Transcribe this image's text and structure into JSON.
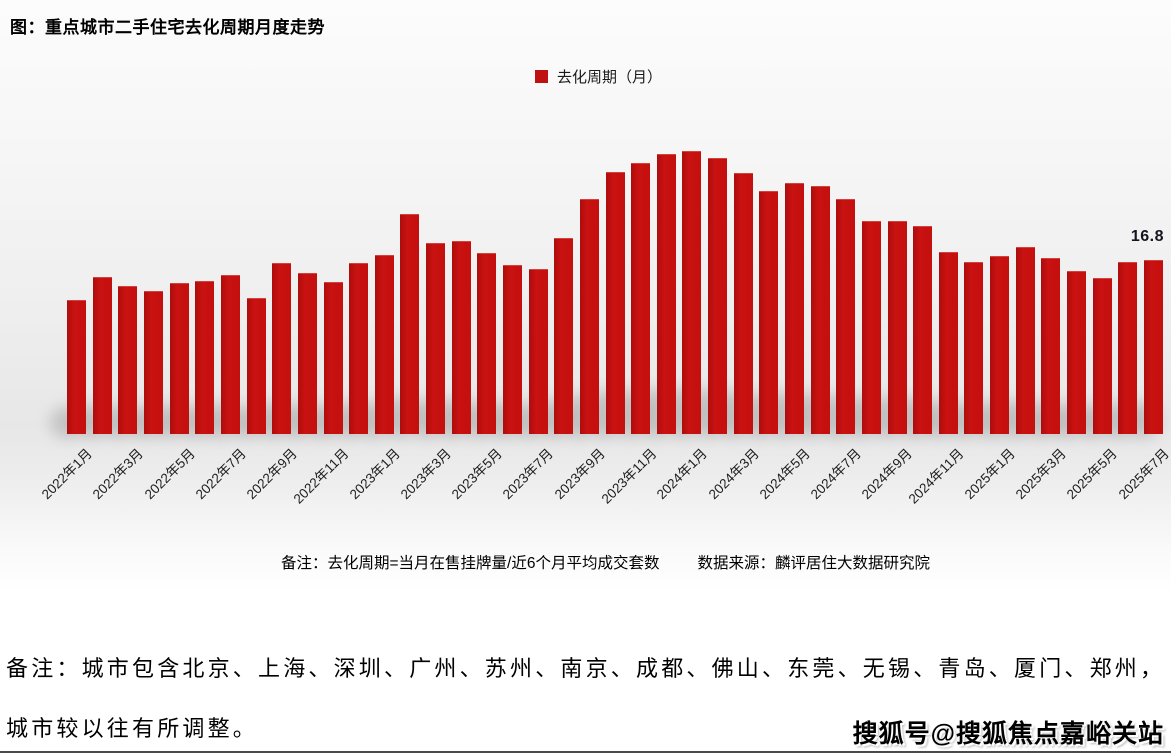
{
  "page": {
    "title": "图：重点城市二手住宅去化周期月度走势",
    "legend_label": "去化周期（月）",
    "last_value_label": "16.8",
    "note_formula": "备注：去化周期=当月在售挂牌量/近6个月平均成交套数",
    "note_source": "数据来源：麟评居住大数据研究院",
    "footer_line1": "备注：城市包含北京、上海、深圳、广州、苏州、南京、成都、佛山、东莞、无锡、青岛、厦门、郑州，",
    "footer_line2": "城市较以往有所调整。",
    "watermark": "搜狐号@搜狐焦点嘉峪关站"
  },
  "chart_data": {
    "type": "bar",
    "title": "图：重点城市二手住宅去化周期月度走势",
    "unit": "月",
    "bar_color": "#c5100f",
    "grid": false,
    "legend_position": "top-center",
    "ylim": [
      0,
      30
    ],
    "categories": [
      "2022年1月",
      "2022年2月",
      "2022年3月",
      "2022年4月",
      "2022年5月",
      "2022年6月",
      "2022年7月",
      "2022年8月",
      "2022年9月",
      "2022年10月",
      "2022年11月",
      "2022年12月",
      "2023年1月",
      "2023年2月",
      "2023年3月",
      "2023年4月",
      "2023年5月",
      "2023年6月",
      "2023年7月",
      "2023年8月",
      "2023年9月",
      "2023年10月",
      "2023年11月",
      "2023年12月",
      "2024年1月",
      "2024年2月",
      "2024年3月",
      "2024年4月",
      "2024年5月",
      "2024年6月",
      "2024年7月",
      "2024年8月",
      "2024年9月",
      "2024年10月",
      "2024年11月",
      "2024年12月",
      "2025年1月",
      "2025年2月",
      "2025年3月",
      "2025年4月",
      "2025年5月",
      "2025年6月",
      "2025年7月"
    ],
    "series": [
      {
        "name": "去化周期（月）",
        "values": [
          12.9,
          15.1,
          14.3,
          13.8,
          14.6,
          14.8,
          15.3,
          13.1,
          16.5,
          15.5,
          14.7,
          16.5,
          17.3,
          21.3,
          18.4,
          18.6,
          17.5,
          16.3,
          15.9,
          18.9,
          22.7,
          25.3,
          26.2,
          27.1,
          27.4,
          26.7,
          25.2,
          23.5,
          24.3,
          24.0,
          22.7,
          20.6,
          20.6,
          20.1,
          17.6,
          16.6,
          17.2,
          18.1,
          17.0,
          15.7,
          15.0,
          16.6,
          16.8
        ]
      }
    ],
    "x_tick_labels_shown": [
      "2022年1月",
      "2022年3月",
      "2022年5月",
      "2022年7月",
      "2022年9月",
      "2022年11月",
      "2023年1月",
      "2023年3月",
      "2023年5月",
      "2023年7月",
      "2023年9月",
      "2023年11月",
      "2024年1月",
      "2024年3月",
      "2024年5月",
      "2024年7月",
      "2024年9月",
      "2024年11月",
      "2025年1月",
      "2025年3月",
      "2025年5月",
      "2025年7月"
    ],
    "data_labels": [
      {
        "category": "2025年7月",
        "value": 16.8,
        "text": "16.8"
      }
    ]
  }
}
